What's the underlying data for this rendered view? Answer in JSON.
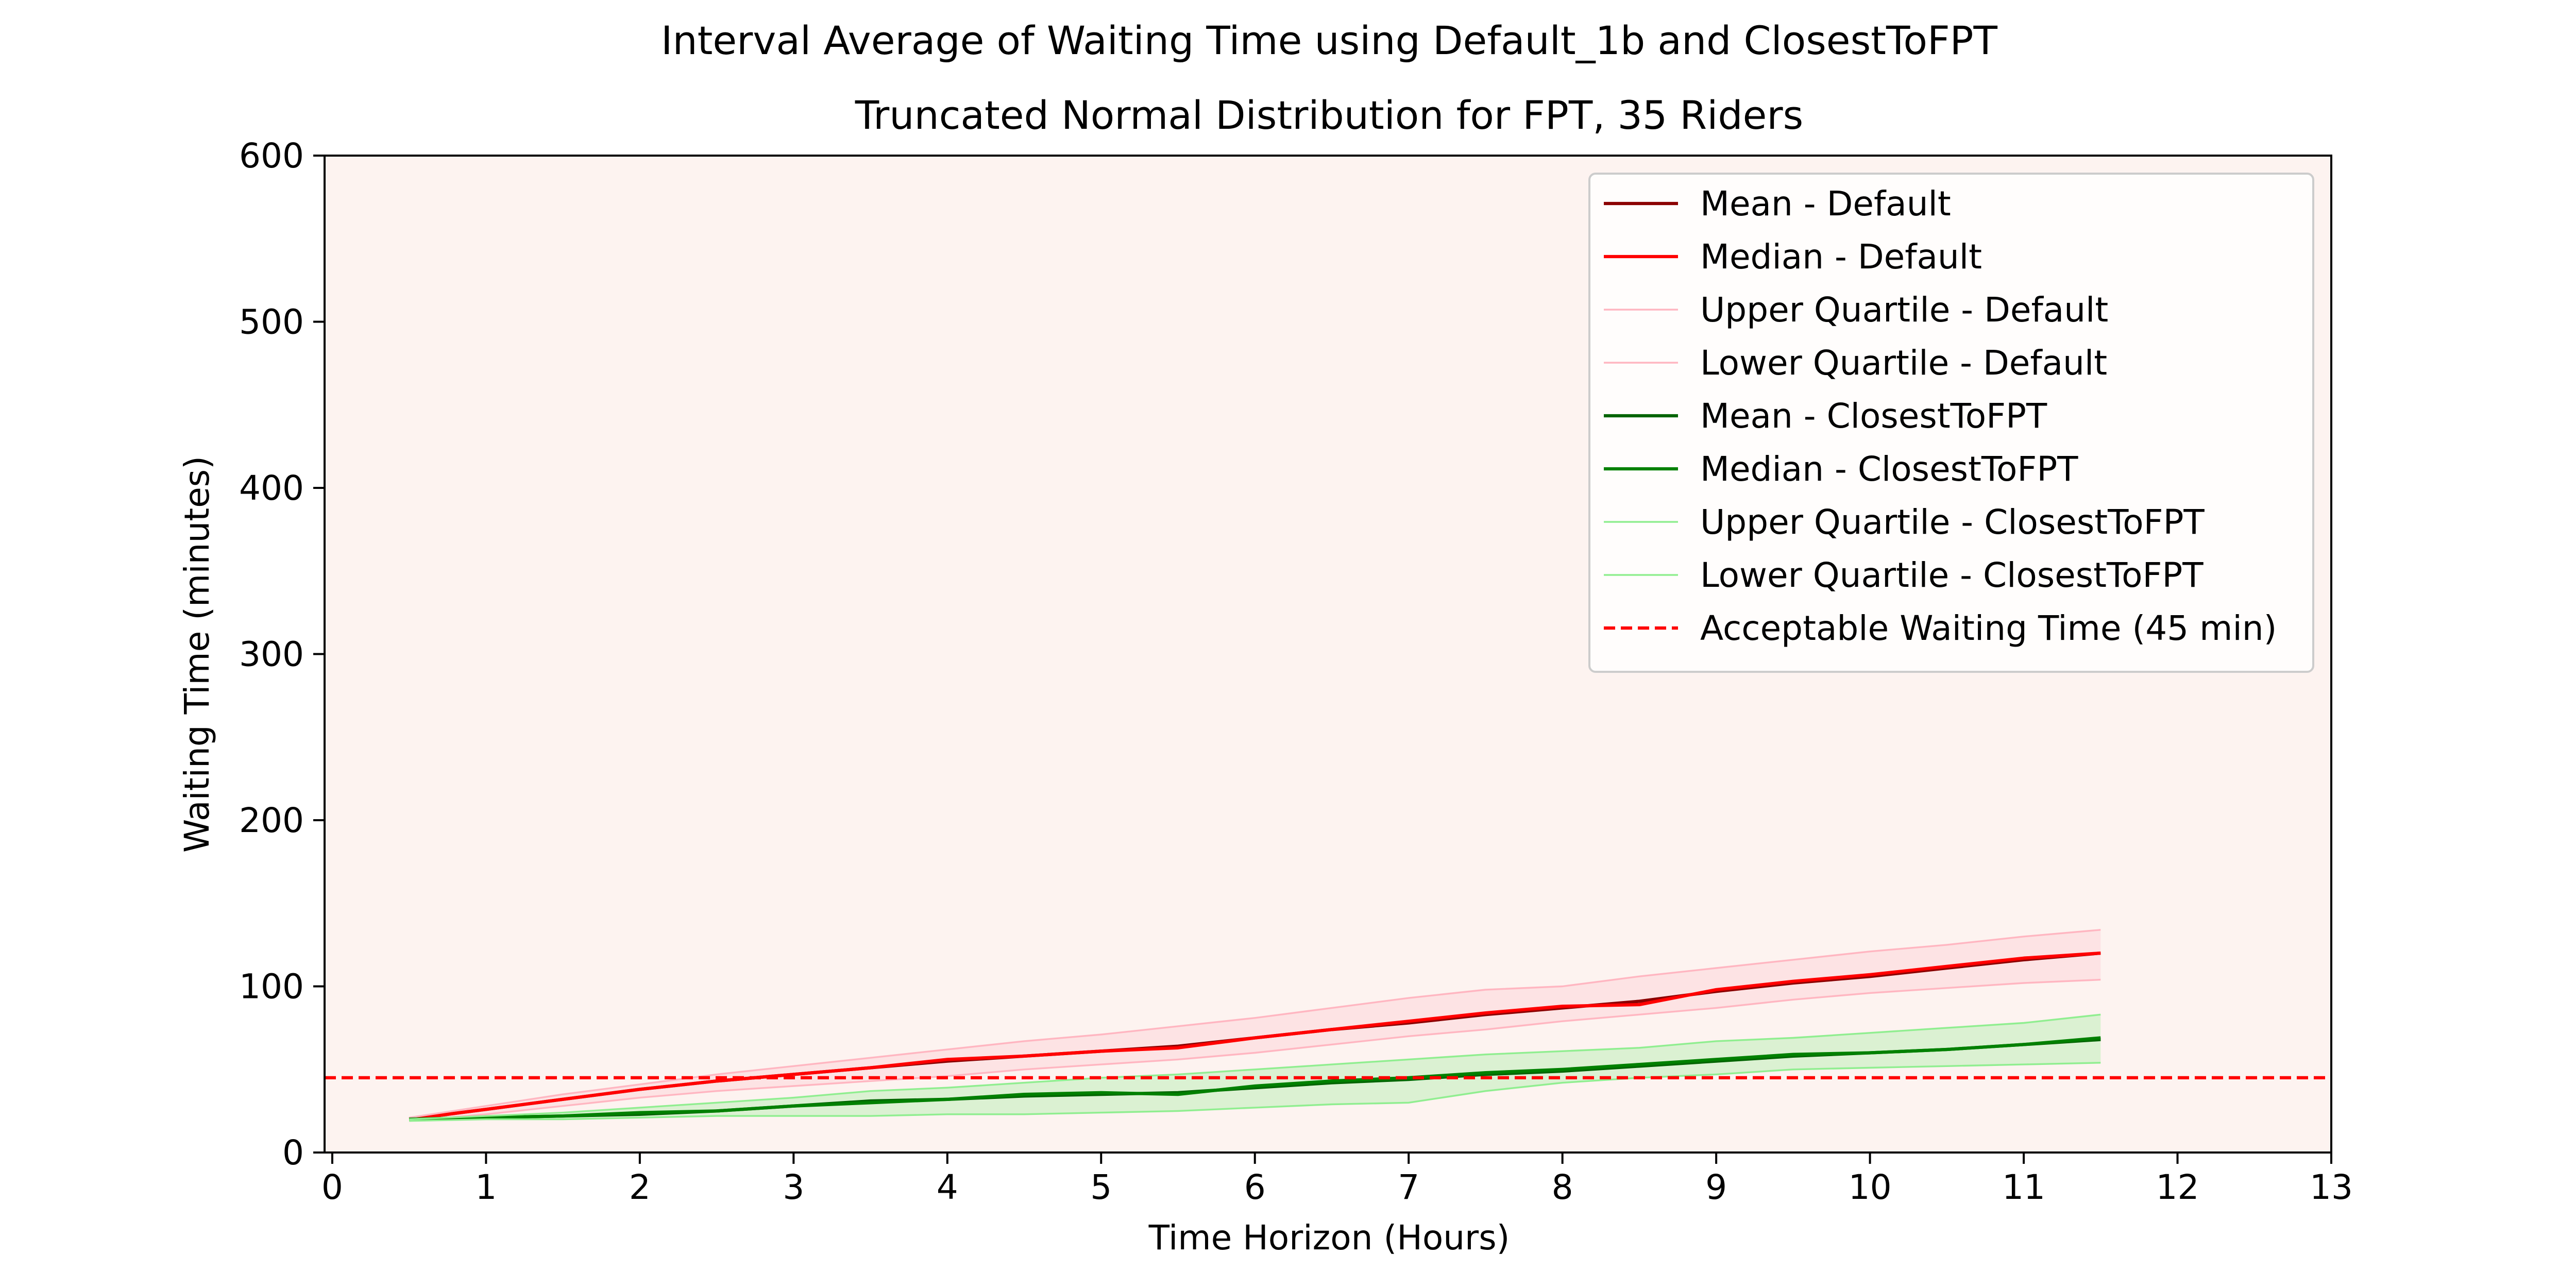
{
  "chart_data": {
    "type": "line",
    "title": "Interval Average of Waiting Time using Default_1b and ClosestToFPT",
    "subtitle": "Truncated Normal Distribution for FPT, 35 Riders",
    "xlabel": "Time Horizon (Hours)",
    "ylabel": "Waiting Time (minutes)",
    "xlim": [
      -0.05,
      13
    ],
    "ylim": [
      0,
      600
    ],
    "xticks": [
      0,
      1,
      2,
      3,
      4,
      5,
      6,
      7,
      8,
      9,
      10,
      11,
      12,
      13
    ],
    "yticks": [
      0,
      100,
      200,
      300,
      400,
      500,
      600
    ],
    "grid": false,
    "legend_position": "upper right",
    "plot_background": "#fdf3f0",
    "x": [
      0.5,
      1,
      1.5,
      2,
      2.5,
      3,
      3.5,
      4,
      4.5,
      5,
      5.5,
      6,
      6.5,
      7,
      7.5,
      8,
      8.5,
      9,
      9.5,
      10,
      10.5,
      11,
      11.5
    ],
    "series": [
      {
        "name": "Mean - Default",
        "color": "#8b0000",
        "width": 1.5,
        "style": "solid",
        "values": [
          20,
          26,
          32,
          38,
          43,
          47,
          51,
          55,
          58,
          61,
          64,
          69,
          74,
          78,
          83,
          87,
          91,
          97,
          102,
          106,
          111,
          116,
          120
        ]
      },
      {
        "name": "Median - Default",
        "color": "#ff0000",
        "width": 1.5,
        "style": "solid",
        "values": [
          20,
          26,
          32,
          38,
          43,
          47,
          51,
          56,
          58,
          61,
          63,
          69,
          74,
          79,
          84,
          88,
          89,
          98,
          103,
          107,
          112,
          117,
          120
        ]
      },
      {
        "name": "Upper Quartile - Default",
        "color": "#ffb6c1",
        "width": 0.8,
        "style": "solid",
        "values": [
          21,
          28,
          35,
          41,
          47,
          52,
          57,
          62,
          67,
          71,
          76,
          81,
          87,
          93,
          98,
          100,
          106,
          111,
          116,
          121,
          125,
          130,
          134
        ]
      },
      {
        "name": "Lower Quartile - Default",
        "color": "#ffb6c1",
        "width": 0.8,
        "style": "solid",
        "values": [
          19,
          23,
          28,
          33,
          37,
          40,
          43,
          46,
          50,
          53,
          56,
          60,
          65,
          70,
          74,
          79,
          83,
          87,
          92,
          96,
          99,
          102,
          104
        ]
      },
      {
        "name": "Mean - ClosestToFPT",
        "color": "#006400",
        "width": 1.5,
        "style": "solid",
        "values": [
          20,
          21,
          22,
          23,
          25,
          28,
          31,
          32,
          34,
          35,
          36,
          39,
          42,
          44,
          47,
          49,
          52,
          55,
          58,
          60,
          62,
          65,
          68
        ]
      },
      {
        "name": "Median - ClosestToFPT",
        "color": "#008000",
        "width": 1.5,
        "style": "solid",
        "values": [
          20,
          21,
          22,
          24,
          25,
          28,
          30,
          32,
          35,
          36,
          35,
          40,
          43,
          45,
          48,
          50,
          53,
          56,
          59,
          60,
          62,
          65,
          69
        ]
      },
      {
        "name": "Upper Quartile - ClosestToFPT",
        "color": "#90ee90",
        "width": 0.8,
        "style": "solid",
        "values": [
          20,
          22,
          24,
          27,
          30,
          33,
          37,
          39,
          42,
          45,
          47,
          50,
          53,
          56,
          59,
          61,
          63,
          67,
          69,
          72,
          75,
          78,
          83
        ]
      },
      {
        "name": "Lower Quartile - ClosestToFPT",
        "color": "#90ee90",
        "width": 0.8,
        "style": "solid",
        "values": [
          19,
          20,
          20,
          21,
          22,
          22,
          22,
          23,
          23,
          24,
          25,
          27,
          29,
          30,
          37,
          42,
          45,
          47,
          50,
          51,
          52,
          53,
          54
        ]
      }
    ],
    "bands": [
      {
        "upper": "Upper Quartile - Default",
        "lower": "Lower Quartile - Default",
        "color": "#ffc0cb",
        "opacity": 0.3
      },
      {
        "upper": "Upper Quartile - ClosestToFPT",
        "lower": "Lower Quartile - ClosestToFPT",
        "color": "#90ee90",
        "opacity": 0.3
      }
    ],
    "reference_lines": [
      {
        "name": "Acceptable Waiting Time (45 min)",
        "y": 45,
        "color": "#ff0000",
        "style": "dashed",
        "width": 1.5
      }
    ]
  }
}
